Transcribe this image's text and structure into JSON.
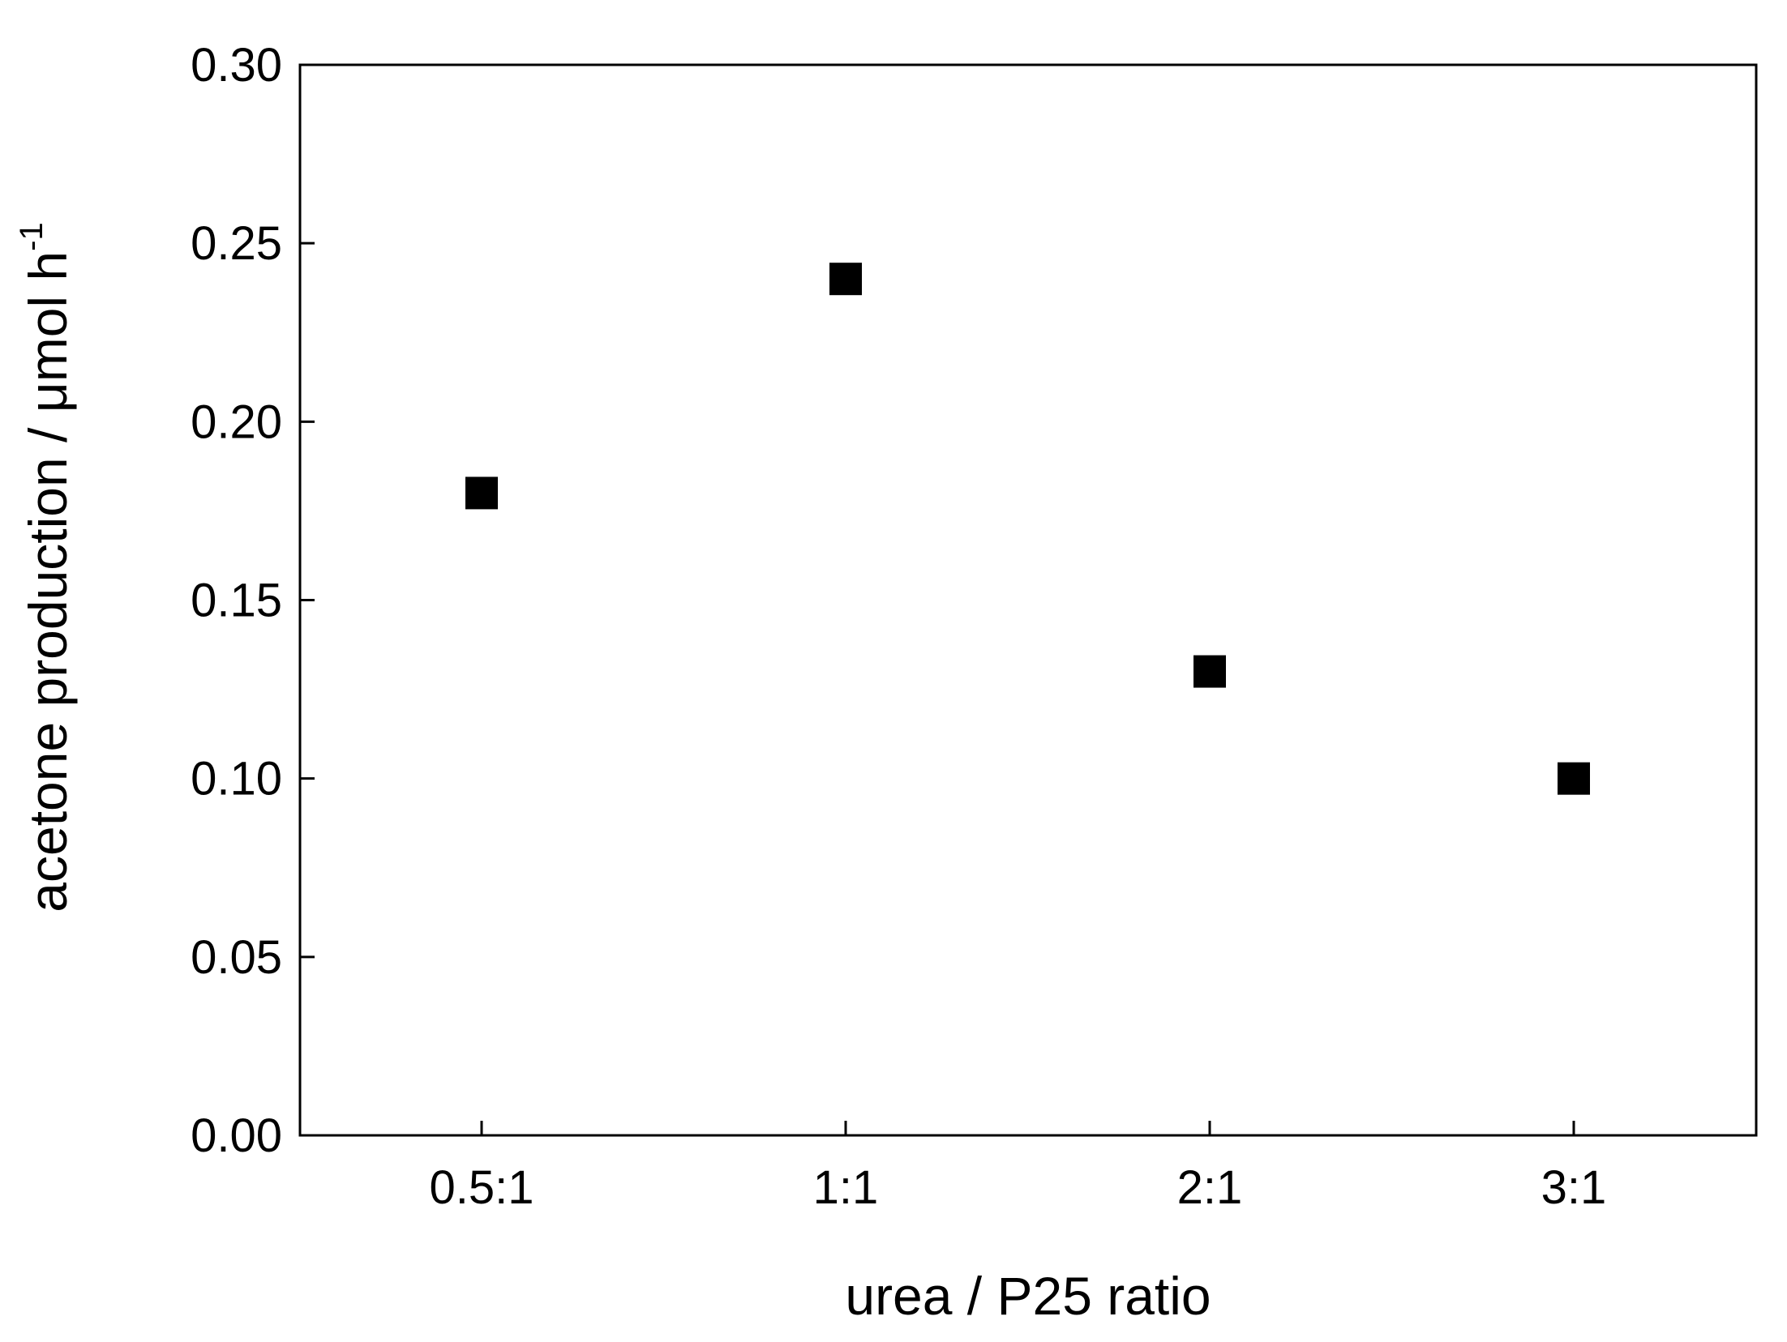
{
  "chart_data": {
    "type": "scatter",
    "title": "",
    "xlabel": "urea / P25 ratio",
    "ylabel": {
      "main": "acetone production / μmol h",
      "superscript": "-1"
    },
    "categories": [
      "0.5:1",
      "1:1",
      "2:1",
      "3:1"
    ],
    "series": [
      {
        "values": [
          0.18,
          0.24,
          0.13,
          0.1
        ],
        "marker": "square",
        "color": "#000000"
      }
    ],
    "ylim": [
      0.0,
      0.3
    ],
    "yticks": [
      "0.00",
      "0.05",
      "0.10",
      "0.15",
      "0.20",
      "0.25",
      "0.30"
    ],
    "grid": false,
    "legend": "none"
  }
}
